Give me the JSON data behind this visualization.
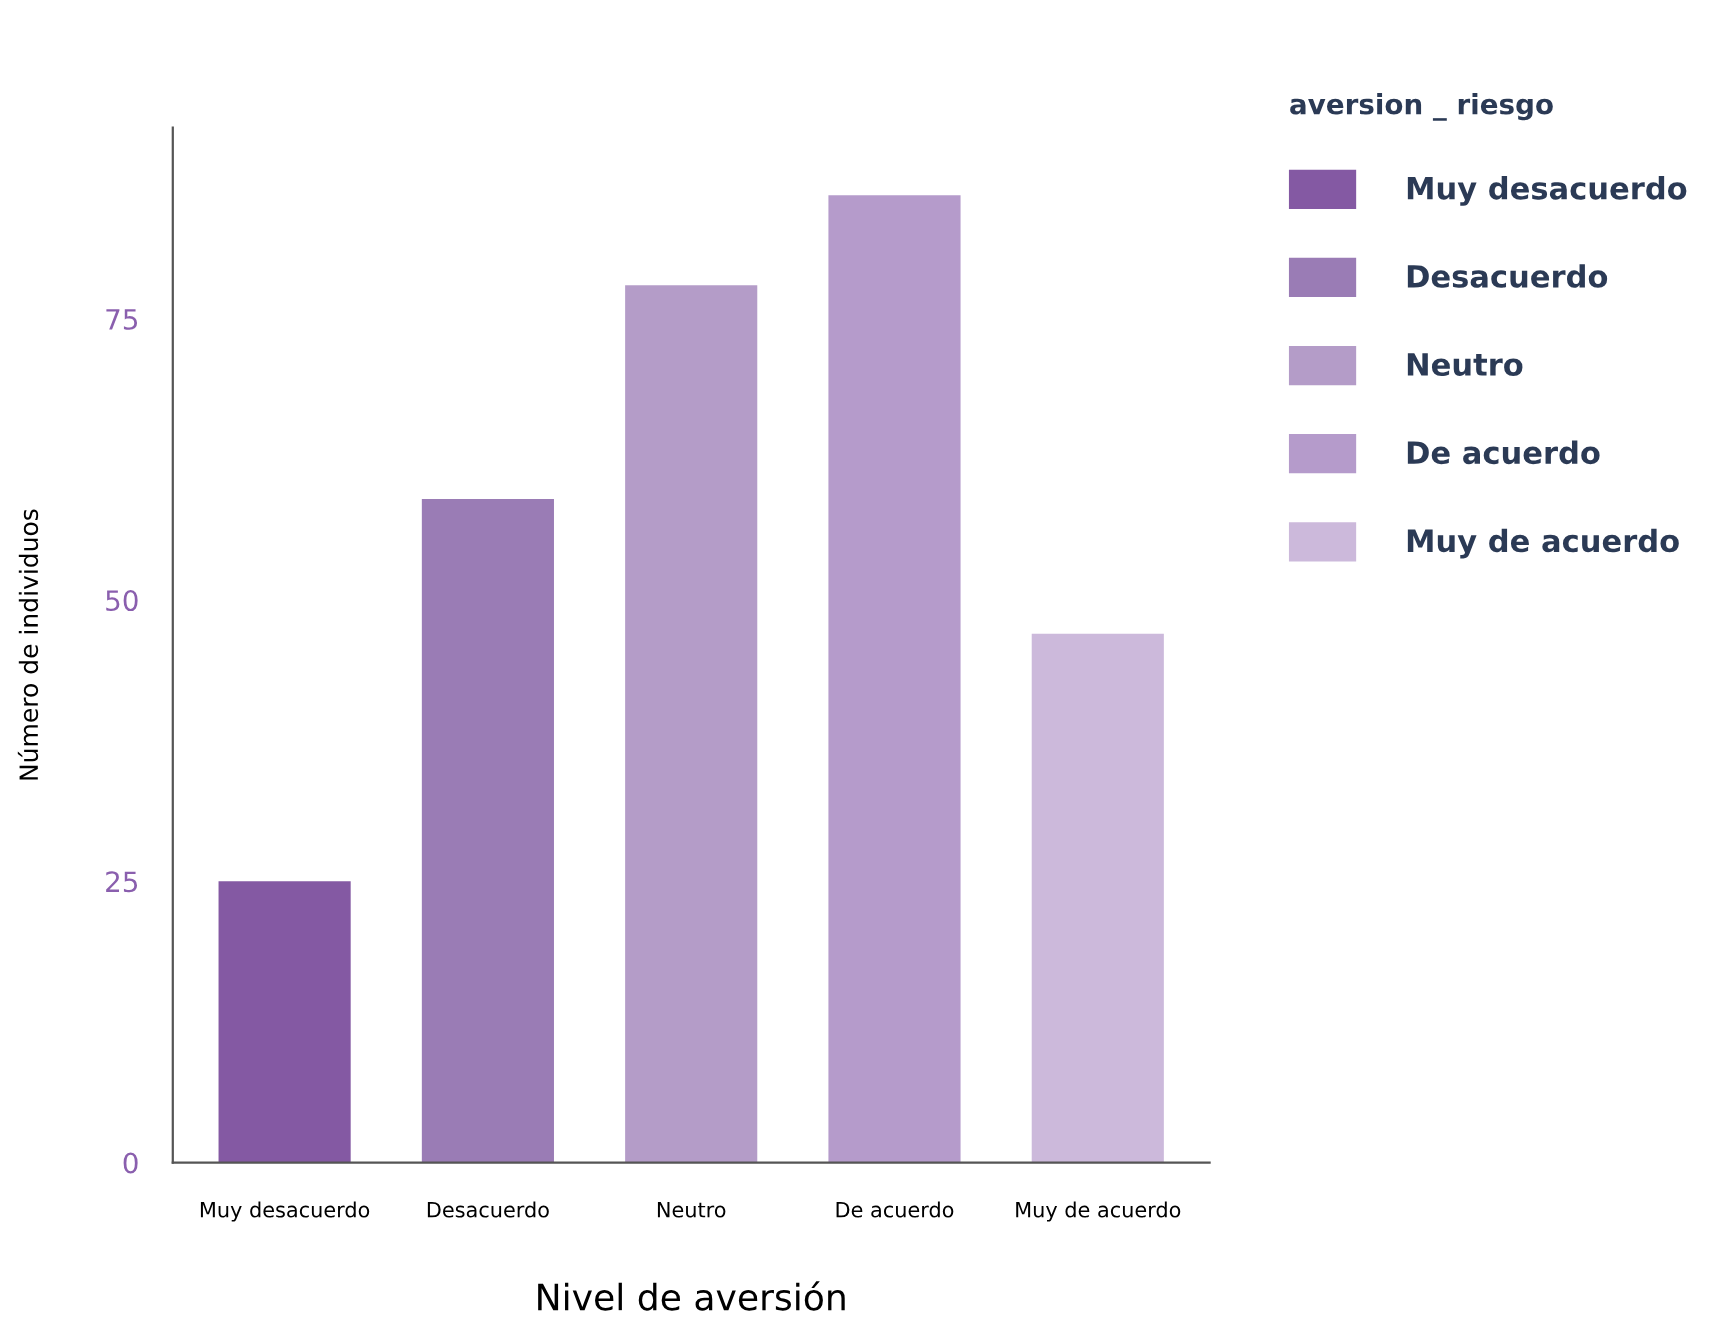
{
  "chart_data": {
    "type": "bar",
    "xlabel": "Nivel de aversión",
    "ylabel": "Número de individuos",
    "legend_title": "aversion _ riesgo",
    "categories": [
      "Muy desacuerdo",
      "Desacuerdo",
      "Neutro",
      "De acuerdo",
      "Muy de acuerdo"
    ],
    "series": [
      {
        "name": "Muy desacuerdo",
        "color": "#8459a3",
        "values": [
          25,
          null,
          null,
          null,
          null
        ]
      },
      {
        "name": "Desacuerdo",
        "color": "#9a7cb5",
        "values": [
          null,
          59,
          null,
          null,
          null
        ]
      },
      {
        "name": "Neutro",
        "color": "#b49cc8",
        "values": [
          null,
          null,
          78,
          null,
          null
        ]
      },
      {
        "name": "De acuerdo",
        "color": "#b59bcb",
        "values": [
          null,
          null,
          null,
          86,
          null
        ]
      },
      {
        "name": "Muy de acuerdo",
        "color": "#ccb9db",
        "values": [
          null,
          null,
          null,
          null,
          47
        ]
      }
    ],
    "ylim": [
      0,
      92
    ],
    "yticks": [
      0,
      25,
      50,
      75
    ],
    "grid": false,
    "legend": "top right"
  }
}
